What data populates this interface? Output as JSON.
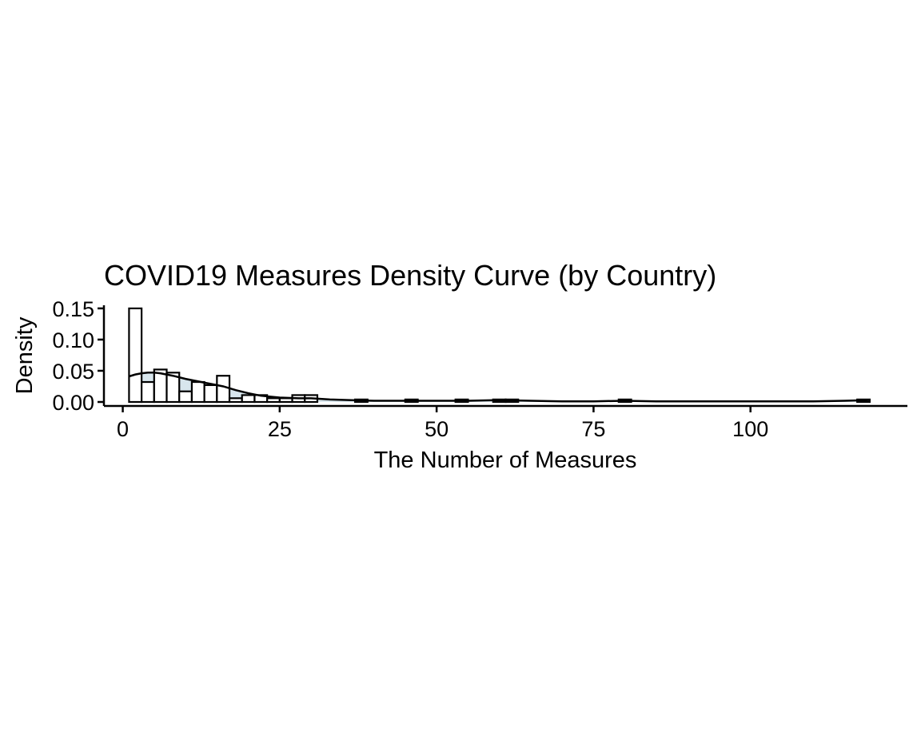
{
  "chart_data": {
    "type": "histogram",
    "title": "COVID19 Measures Density Curve (by Country)",
    "xlabel": "The Number of Measures",
    "ylabel": "Density",
    "xlim": [
      -3,
      125
    ],
    "ylim": [
      0,
      0.155
    ],
    "x_ticks": [
      {
        "value": 0,
        "label": "0"
      },
      {
        "value": 25,
        "label": "25"
      },
      {
        "value": 50,
        "label": "50"
      },
      {
        "value": 75,
        "label": "75"
      },
      {
        "value": 100,
        "label": "100"
      }
    ],
    "y_ticks": [
      {
        "value": 0.0,
        "label": "0.00"
      },
      {
        "value": 0.05,
        "label": "0.05"
      },
      {
        "value": 0.1,
        "label": "0.10"
      },
      {
        "value": 0.15,
        "label": "0.15"
      }
    ],
    "bin_width": 2,
    "bins": [
      {
        "start": 1,
        "density": 0.15
      },
      {
        "start": 3,
        "density": 0.032
      },
      {
        "start": 5,
        "density": 0.052
      },
      {
        "start": 7,
        "density": 0.047
      },
      {
        "start": 9,
        "density": 0.017
      },
      {
        "start": 11,
        "density": 0.032
      },
      {
        "start": 13,
        "density": 0.027
      },
      {
        "start": 15,
        "density": 0.042
      },
      {
        "start": 17,
        "density": 0.006
      },
      {
        "start": 19,
        "density": 0.011
      },
      {
        "start": 21,
        "density": 0.011
      },
      {
        "start": 23,
        "density": 0.006
      },
      {
        "start": 25,
        "density": 0.006
      },
      {
        "start": 27,
        "density": 0.011
      },
      {
        "start": 29,
        "density": 0.011
      },
      {
        "start": 37,
        "density": 0.004
      },
      {
        "start": 45,
        "density": 0.004
      },
      {
        "start": 53,
        "density": 0.004
      },
      {
        "start": 59,
        "density": 0.004
      },
      {
        "start": 61,
        "density": 0.004
      },
      {
        "start": 79,
        "density": 0.004
      },
      {
        "start": 117,
        "density": 0.004
      }
    ],
    "density_curve": {
      "x": [
        1,
        2,
        3,
        4,
        5,
        6,
        8,
        10,
        12,
        14,
        16,
        18,
        20,
        22,
        25,
        28,
        30,
        33,
        36,
        40,
        45,
        50,
        55,
        60,
        65,
        70,
        75,
        80,
        85,
        90,
        95,
        100,
        105,
        110,
        115,
        119
      ],
      "y": [
        0.041,
        0.044,
        0.046,
        0.047,
        0.047,
        0.046,
        0.042,
        0.037,
        0.033,
        0.029,
        0.025,
        0.019,
        0.014,
        0.01,
        0.007,
        0.006,
        0.006,
        0.004,
        0.003,
        0.002,
        0.002,
        0.002,
        0.002,
        0.003,
        0.002,
        0.001,
        0.001,
        0.002,
        0.001,
        0.001,
        0.001,
        0.001,
        0.001,
        0.001,
        0.002,
        0.003
      ]
    },
    "colors": {
      "bar_fill": "#ffffff",
      "bar_stroke": "#000000",
      "density_fill": "#c8dbe6",
      "density_line": "#000000"
    },
    "legend": "none",
    "grid": false
  }
}
